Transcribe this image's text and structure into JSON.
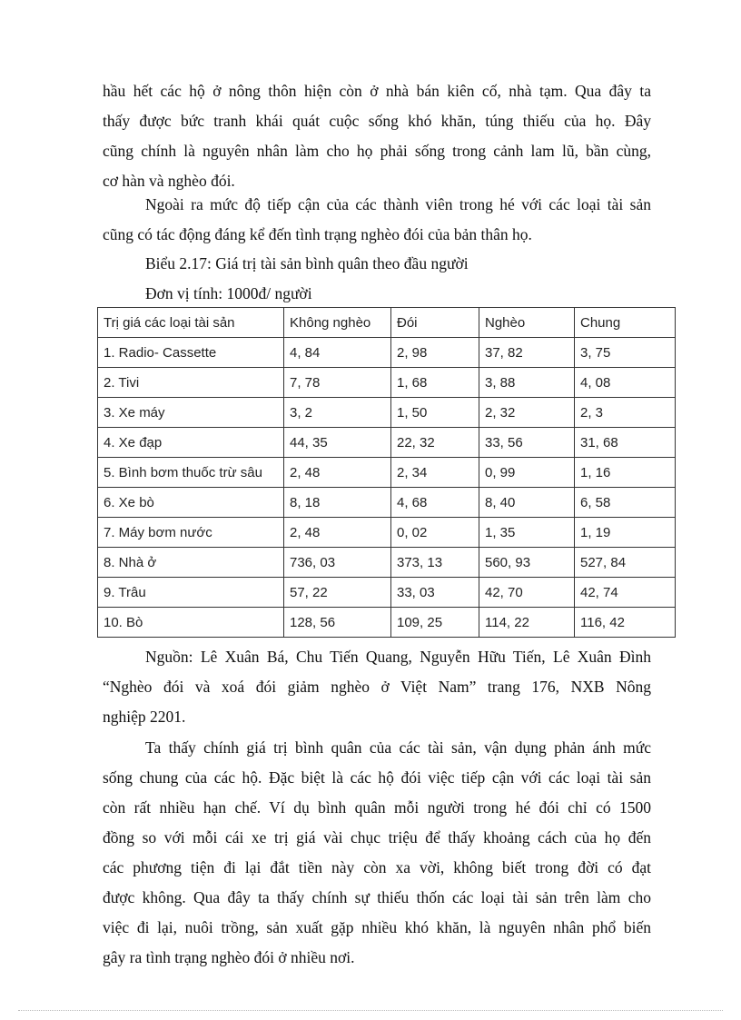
{
  "paragraph1": [
    "hầu hết các hộ ở nông thôn hiện còn ở nhà bán kiên cố, nhà tạm. Qua đây ta",
    "thấy được bức tranh khái quát cuộc sống khó khăn, túng thiếu của họ. Đây",
    "cũng chính là nguyên nhân làm cho họ phải sống trong cảnh lam lũ, bần cùng,",
    "cơ hàn và nghèo đói."
  ],
  "paragraph2": [
    "Ngoài ra mức độ tiếp cận của các thành viên trong hé với các loại tài sản",
    "cũng có tác động đáng kể đến tình trạng nghèo đói của bản thân họ."
  ],
  "caption": "Biểu 2.17: Giá trị tài sản bình quân theo đầu người",
  "unit": "Đơn vị tính: 1000đ/ người",
  "table": {
    "headers": [
      "Trị giá các loại tài sản",
      "Không nghèo",
      "Đói",
      "Nghèo",
      "Chung"
    ],
    "rows": [
      [
        "1. Radio- Cassette",
        "4, 84",
        "2, 98",
        "37, 82",
        "3, 75"
      ],
      [
        "2. Tivi",
        "7, 78",
        "1, 68",
        "3, 88",
        "4, 08"
      ],
      [
        "3. Xe máy",
        "3, 2",
        "1, 50",
        "2, 32",
        "2, 3"
      ],
      [
        "4. Xe đạp",
        "44, 35",
        "22, 32",
        "33, 56",
        "31, 68"
      ],
      [
        "5. Bình bơm thuốc trừ sâu",
        "2, 48",
        "2, 34",
        "0, 99",
        "1, 16"
      ],
      [
        "6. Xe bò",
        "8, 18",
        "4, 68",
        "8, 40",
        "6, 58"
      ],
      [
        "7. Máy bơm nước",
        "2, 48",
        "0, 02",
        "1, 35",
        "1, 19"
      ],
      [
        "8. Nhà ở",
        "736, 03",
        "373, 13",
        "560, 93",
        "527, 84"
      ],
      [
        "9. Trâu",
        "57, 22",
        "33, 03",
        "42, 70",
        "42, 74"
      ],
      [
        "10. Bò",
        "128, 56",
        "109, 25",
        "114, 22",
        "116, 42"
      ]
    ]
  },
  "source": [
    "Nguồn: Lê Xuân Bá, Chu Tiến Quang, Nguyễn Hữu Tiến, Lê Xuân Đình",
    "“Nghèo đói và xoá đói giảm nghèo ở Việt Nam” trang 176, NXB Nông",
    "nghiệp 2201."
  ],
  "paragraph3": [
    "Ta thấy chính giá trị bình quân của các tài sản, vận dụng phản ánh mức",
    "sống chung của các hộ. Đặc biệt là các hộ đói việc tiếp cận với các loại tài sản",
    "còn rất nhiều hạn chế. Ví dụ bình quân mỗi người trong hé đói chỉ có 1500",
    "đồng so với mỗi cái xe trị giá vài chục triệu để thấy khoảng cách của họ đến",
    "các phương tiện đi lại đắt tiền này còn xa vời, không biết trong đời có đạt",
    "được không. Qua đây ta thấy chính sự thiếu thốn các loại tài sản trên làm cho",
    "việc đi lại, nuôi trồng, sản xuất gặp nhiều khó khăn, là nguyên nhân phổ biến",
    "gây ra tình trạng nghèo đói ở nhiều nơi."
  ]
}
